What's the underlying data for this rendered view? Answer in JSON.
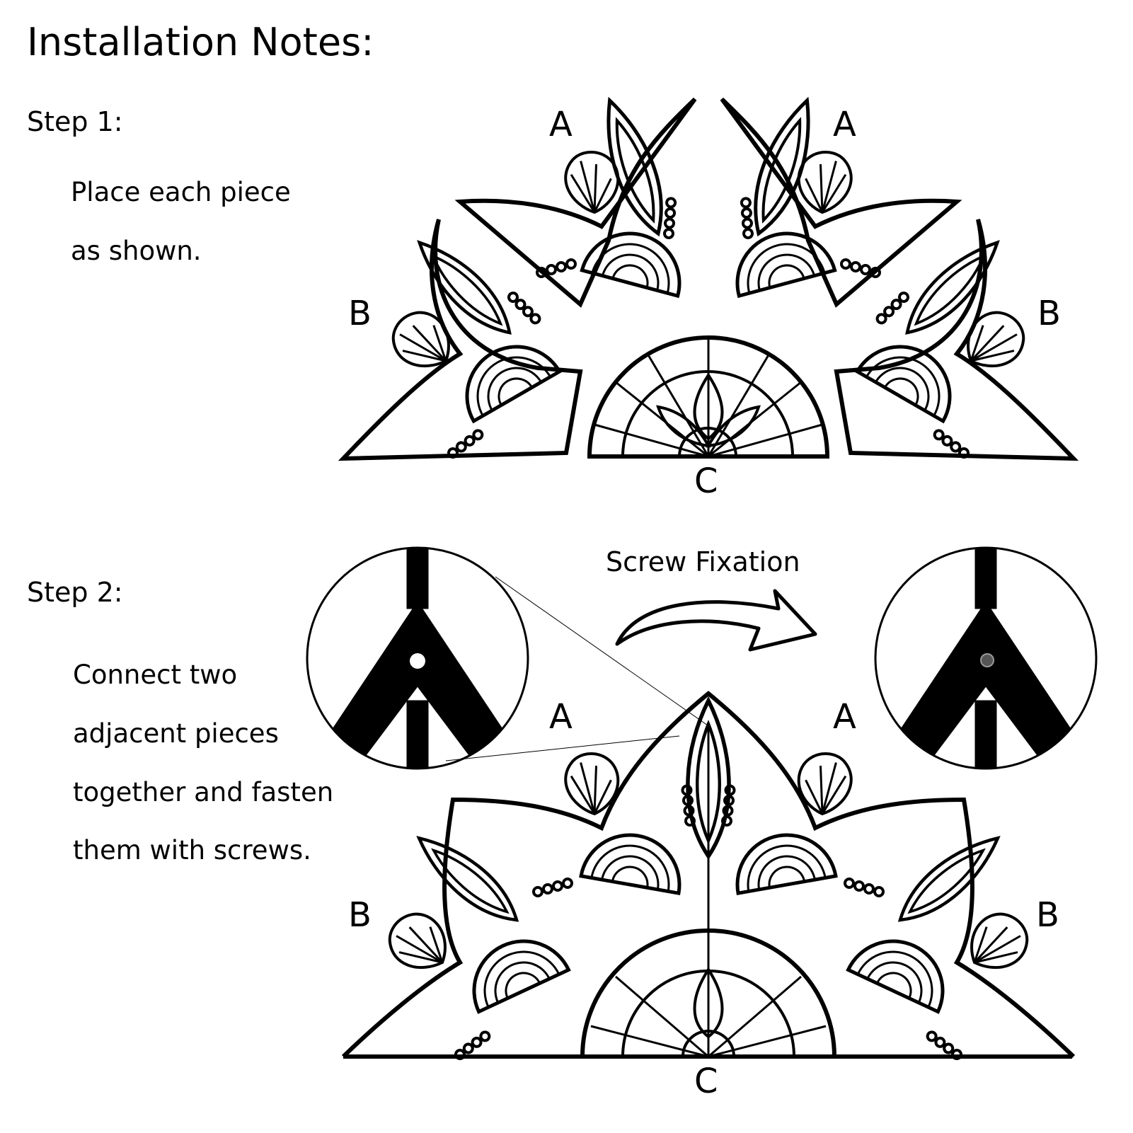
{
  "title": "Installation Notes:",
  "step1": {
    "heading": "Step 1:",
    "lines": [
      "Place each piece",
      "as shown."
    ],
    "labels": {
      "a_left": "A",
      "a_right": "A",
      "b_left": "B",
      "b_right": "B",
      "c": "C"
    }
  },
  "step2": {
    "heading": "Step 2:",
    "lines": [
      "Connect two",
      "adjacent pieces",
      "together and fasten",
      "them with screws."
    ],
    "arrow_label": "Screw Fixation",
    "labels": {
      "a_left": "A",
      "a_right": "A",
      "b_left": "B",
      "b_right": "B",
      "c": "C"
    }
  },
  "colors": {
    "ink": "#000000",
    "paper": "#ffffff"
  }
}
